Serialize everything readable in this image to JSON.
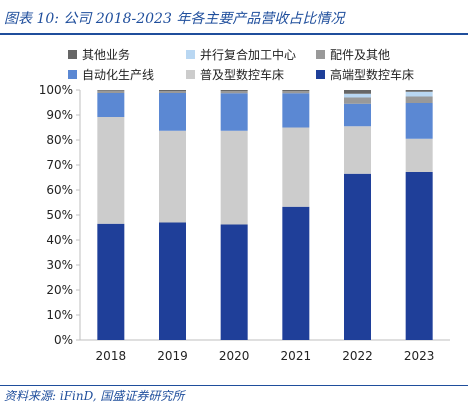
{
  "title": "图表 10:  公司 2018-2023 年各主要产品营收占比情况",
  "source": "资料来源:  iFinD,  国盛证券研究所",
  "chart_data": {
    "type": "bar",
    "stacked": true,
    "categories": [
      "2018",
      "2019",
      "2020",
      "2021",
      "2022",
      "2023"
    ],
    "y_ticks": [
      "0%",
      "10%",
      "20%",
      "30%",
      "40%",
      "50%",
      "60%",
      "70%",
      "80%",
      "90%",
      "100%"
    ],
    "ylim": [
      0,
      100
    ],
    "legend_position": "top",
    "series": [
      {
        "name": "高端型数控车床",
        "color": "#1f3f99",
        "values": [
          46.5,
          47.0,
          46.2,
          53.3,
          66.5,
          67.2
        ]
      },
      {
        "name": "普及型数控车床",
        "color": "#cccccc",
        "values": [
          42.7,
          36.7,
          37.5,
          31.7,
          19.0,
          13.3
        ]
      },
      {
        "name": "自动化生产线",
        "color": "#5b88d3",
        "values": [
          9.6,
          15.1,
          15.0,
          13.7,
          9.0,
          14.3
        ]
      },
      {
        "name": "配件及其他",
        "color": "#999999",
        "values": [
          1.0,
          0.8,
          0.9,
          0.9,
          2.5,
          2.6
        ]
      },
      {
        "name": "并行复合加工中心",
        "color": "#b9d7f2",
        "values": [
          0.0,
          0.0,
          0.0,
          0.0,
          1.5,
          1.9
        ]
      },
      {
        "name": "其他业务",
        "color": "#666666",
        "values": [
          0.2,
          0.4,
          0.4,
          0.4,
          1.5,
          0.7
        ]
      }
    ]
  }
}
